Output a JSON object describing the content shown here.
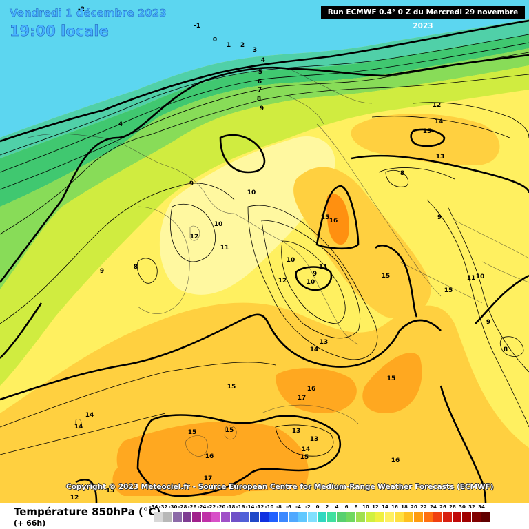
{
  "header": {
    "valid_date": "Vendredi 1 décembre 2023",
    "valid_time": "19:00 locale",
    "run_info": "Run ECMWF 0.4° 0 Z du Mercredi 29 novembre 2023"
  },
  "copyright": "Copyright © 2023 Meteociel.fr - Source European Centre for Medium-Range Weather Forecasts (ECMWF)",
  "footer": {
    "parameter_title": "Température 850hPa (°C)",
    "lead_time": "(+ 66h)"
  },
  "legend": {
    "labels": [
      "-34",
      "-32",
      "-30",
      "-28",
      "-26",
      "-24",
      "-22",
      "-20",
      "-18",
      "-16",
      "-14",
      "-12",
      "-10",
      "-8",
      "-6",
      "-4",
      "-2",
      "0",
      "2",
      "4",
      "6",
      "8",
      "10",
      "12",
      "14",
      "16",
      "18",
      "20",
      "22",
      "24",
      "26",
      "28",
      "30",
      "32",
      "34"
    ],
    "colors": [
      "#d8d8d8",
      "#b8b8b8",
      "#8c6aa8",
      "#7e3c92",
      "#a0208c",
      "#c030a8",
      "#d850c8",
      "#a050c8",
      "#7050c8",
      "#5060d8",
      "#2048c8",
      "#1030e0",
      "#2060ff",
      "#3c88ff",
      "#50a8ff",
      "#60c8ff",
      "#80e0ff",
      "#30d8c0",
      "#40e0a0",
      "#58d070",
      "#70d860",
      "#a0e050",
      "#d0f040",
      "#f0f040",
      "#fff060",
      "#ffe040",
      "#ffc020",
      "#ff9c10",
      "#ff7010",
      "#f04010",
      "#d82010",
      "#c00808",
      "#a00000",
      "#800000",
      "#600000"
    ]
  },
  "map": {
    "labels": [
      {
        "text": "-2"
      },
      {
        "text": "-1"
      },
      {
        "text": "0"
      },
      {
        "text": "1"
      },
      {
        "text": "2"
      },
      {
        "text": "3"
      },
      {
        "text": "4"
      },
      {
        "text": "5"
      },
      {
        "text": "6"
      },
      {
        "text": "7"
      },
      {
        "text": "8"
      },
      {
        "text": "9"
      },
      {
        "text": "4"
      },
      {
        "text": "9"
      },
      {
        "text": "10"
      },
      {
        "text": "10"
      },
      {
        "text": "12"
      },
      {
        "text": "11"
      },
      {
        "text": "8"
      },
      {
        "text": "9"
      },
      {
        "text": "12"
      },
      {
        "text": "14"
      },
      {
        "text": "15"
      },
      {
        "text": "13"
      },
      {
        "text": "8"
      },
      {
        "text": "15"
      },
      {
        "text": "16"
      },
      {
        "text": "9"
      },
      {
        "text": "10"
      },
      {
        "text": "9"
      },
      {
        "text": "11"
      },
      {
        "text": "10"
      },
      {
        "text": "12"
      },
      {
        "text": "15"
      },
      {
        "text": "15"
      },
      {
        "text": "11"
      },
      {
        "text": "10"
      },
      {
        "text": "9"
      },
      {
        "text": "13"
      },
      {
        "text": "14"
      },
      {
        "text": "15"
      },
      {
        "text": "16"
      },
      {
        "text": "17"
      },
      {
        "text": "15"
      },
      {
        "text": "8"
      },
      {
        "text": "14"
      },
      {
        "text": "14"
      },
      {
        "text": "15"
      },
      {
        "text": "15"
      },
      {
        "text": "13"
      },
      {
        "text": "13"
      },
      {
        "text": "14"
      },
      {
        "text": "15"
      },
      {
        "text": "16"
      },
      {
        "text": "16"
      },
      {
        "text": "17"
      },
      {
        "text": "15"
      },
      {
        "text": "12"
      }
    ]
  }
}
